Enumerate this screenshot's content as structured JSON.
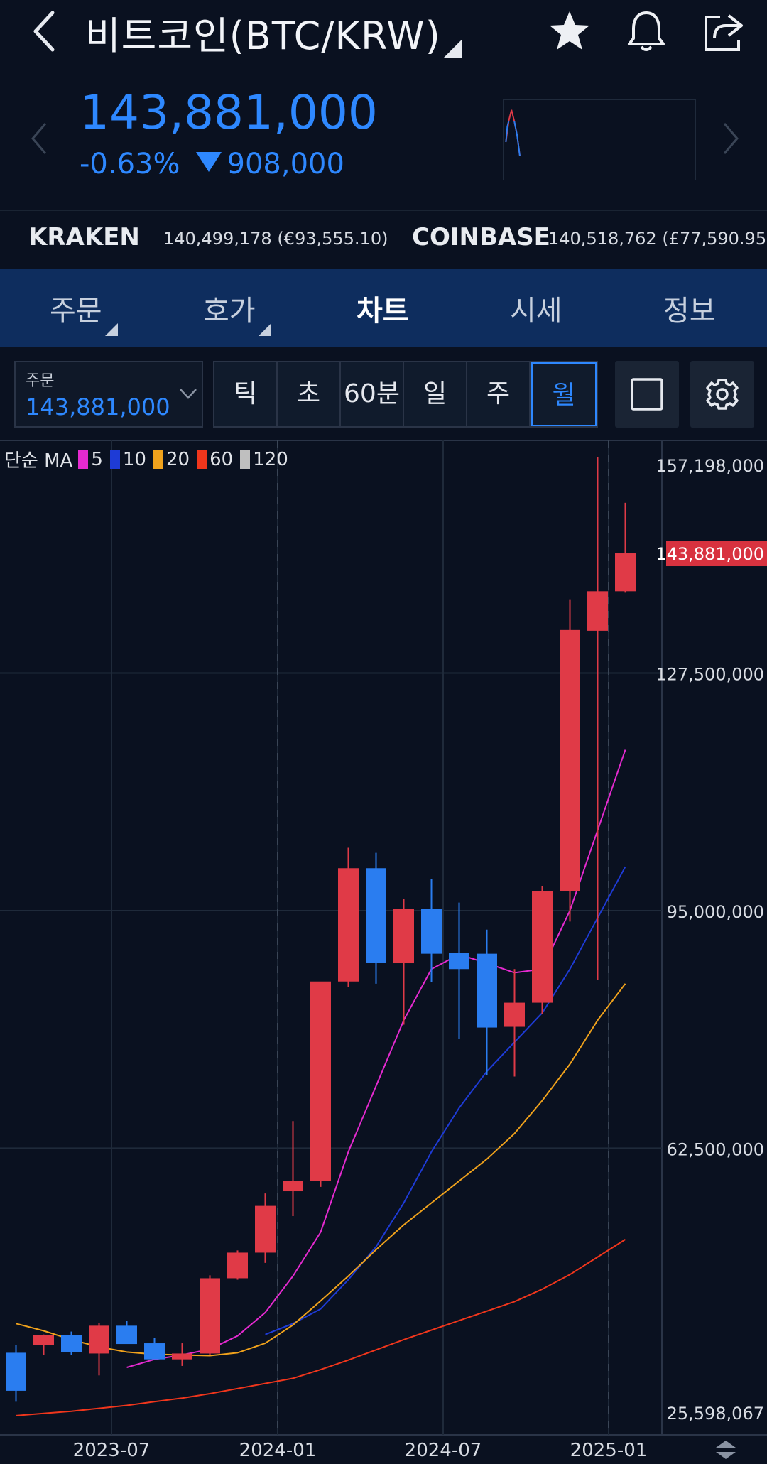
{
  "header": {
    "title": "비트코인(BTC/KRW)",
    "icons": [
      "back-icon",
      "star-icon",
      "bell-icon",
      "share-icon"
    ]
  },
  "price": {
    "current": "143,881,000",
    "change_pct": "-0.63%",
    "change_abs": "908,000",
    "color": "#2e88ff"
  },
  "exchanges": [
    {
      "name": "KRAKEN",
      "value": "140,499,178 (€93,555.10)"
    },
    {
      "name": "COINBASE",
      "value": "140,518,762 (£77,590.95)"
    }
  ],
  "tabs": [
    {
      "label": "주문"
    },
    {
      "label": "호가"
    },
    {
      "label": "차트"
    },
    {
      "label": "시세"
    },
    {
      "label": "정보"
    }
  ],
  "active_tab": "차트",
  "order_box": {
    "label": "주문",
    "value": "143,881,000"
  },
  "intervals": [
    {
      "label": "틱"
    },
    {
      "label": "초"
    },
    {
      "label": "60분"
    },
    {
      "label": "일"
    },
    {
      "label": "주"
    },
    {
      "label": "월"
    }
  ],
  "selected_interval": "월",
  "legend": {
    "label": "단순 MA",
    "periods": [
      {
        "period": "5",
        "color": "#e52ad0"
      },
      {
        "period": "10",
        "color": "#1e3bd6"
      },
      {
        "period": "20",
        "color": "#f0a21c"
      },
      {
        "period": "60",
        "color": "#f0361c"
      },
      {
        "period": "120",
        "color": "#bfbfbf"
      }
    ]
  },
  "chart_data": {
    "type": "candlestick",
    "y_ticks": [
      "157,198,000",
      "127,500,000",
      "95,000,000",
      "62,500,000",
      "25,598,067"
    ],
    "ylim": [
      25598067,
      157198000
    ],
    "x_ticks": [
      "2023-07",
      "2024-01",
      "2024-07",
      "2025-01"
    ],
    "current_price_label": "143,881,000",
    "up_color": "#e03a47",
    "down_color": "#2a7df0",
    "candles": [
      {
        "o": 34500000,
        "h": 35600000,
        "l": 27800000,
        "c": 29300000
      },
      {
        "o": 35600000,
        "h": 37000000,
        "l": 34200000,
        "c": 36900000
      },
      {
        "o": 36900000,
        "h": 37400000,
        "l": 34200000,
        "c": 34600000
      },
      {
        "o": 34400000,
        "h": 38600000,
        "l": 31400000,
        "c": 38200000
      },
      {
        "o": 38200000,
        "h": 38900000,
        "l": 35800000,
        "c": 35700000
      },
      {
        "o": 35800000,
        "h": 36500000,
        "l": 33800000,
        "c": 33600000
      },
      {
        "o": 33600000,
        "h": 35800000,
        "l": 32700000,
        "c": 34400000
      },
      {
        "o": 34400000,
        "h": 45100000,
        "l": 34200000,
        "c": 44700000
      },
      {
        "o": 44700000,
        "h": 48500000,
        "l": 44500000,
        "c": 48200000
      },
      {
        "o": 48200000,
        "h": 56300000,
        "l": 46800000,
        "c": 54600000
      },
      {
        "o": 56600000,
        "h": 66200000,
        "l": 53200000,
        "c": 58000000
      },
      {
        "o": 58000000,
        "h": 85000000,
        "l": 57200000,
        "c": 85300000
      },
      {
        "o": 85300000,
        "h": 103600000,
        "l": 84500000,
        "c": 100800000
      },
      {
        "o": 100800000,
        "h": 102900000,
        "l": 85000000,
        "c": 87900000
      },
      {
        "o": 87800000,
        "h": 96600000,
        "l": 79400000,
        "c": 95200000
      },
      {
        "o": 95200000,
        "h": 99300000,
        "l": 85200000,
        "c": 89100000
      },
      {
        "o": 89200000,
        "h": 96100000,
        "l": 77500000,
        "c": 87000000
      },
      {
        "o": 89100000,
        "h": 92400000,
        "l": 72500000,
        "c": 79000000
      },
      {
        "o": 79100000,
        "h": 87000000,
        "l": 72300000,
        "c": 82400000
      },
      {
        "o": 82400000,
        "h": 98400000,
        "l": 80800000,
        "c": 97700000
      },
      {
        "o": 97700000,
        "h": 137600000,
        "l": 93500000,
        "c": 133400000
      },
      {
        "o": 133300000,
        "h": 157000000,
        "l": 85500000,
        "c": 138700000
      },
      {
        "o": 138700000,
        "h": 150800000,
        "l": 138500000,
        "c": 143881000
      }
    ],
    "ma": [
      {
        "period": "5",
        "color": "#e52ad0",
        "values": [
          null,
          null,
          null,
          null,
          32500000,
          33600000,
          34200000,
          35000000,
          36800000,
          40000000,
          45000000,
          51000000,
          62000000,
          71000000,
          80000000,
          87000000,
          89000000,
          87800000,
          86500000,
          87000000,
          95000000,
          106000000,
          117000000
        ]
      },
      {
        "period": "10",
        "color": "#1e3bd6",
        "values": [
          null,
          null,
          null,
          null,
          null,
          null,
          null,
          null,
          null,
          37000000,
          38500000,
          40500000,
          44500000,
          49000000,
          55000000,
          62000000,
          68000000,
          73000000,
          77000000,
          81000000,
          87000000,
          94000000,
          101000000
        ]
      },
      {
        "period": "20",
        "color": "#f0a21c",
        "values": [
          38500000,
          37500000,
          36300000,
          35300000,
          34600000,
          34300000,
          34200000,
          34100000,
          34500000,
          35800000,
          38300000,
          41600000,
          45000000,
          48600000,
          52000000,
          55000000,
          58000000,
          61000000,
          64500000,
          69000000,
          74000000,
          80000000,
          85000000
        ]
      },
      {
        "period": "60",
        "color": "#f0361c",
        "values": [
          25900000,
          26200000,
          26500000,
          26900000,
          27300000,
          27800000,
          28300000,
          28900000,
          29600000,
          30300000,
          31000000,
          32200000,
          33500000,
          34900000,
          36300000,
          37600000,
          38900000,
          40200000,
          41500000,
          43200000,
          45200000,
          47600000,
          50000000
        ]
      }
    ]
  }
}
